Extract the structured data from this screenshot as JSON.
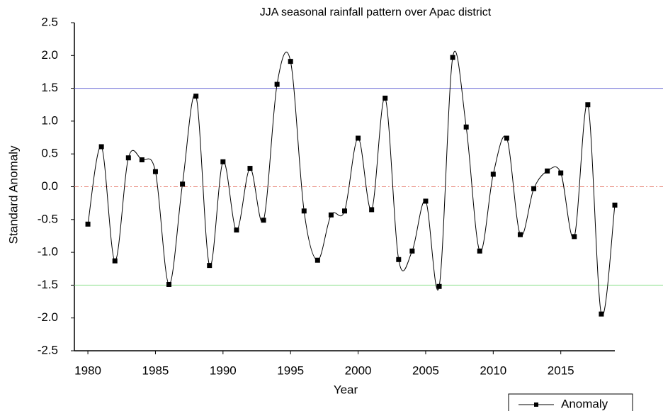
{
  "chart_data": {
    "type": "line",
    "title": "JJA seasonal rainfall pattern over Apac district",
    "x_label": "Year",
    "y_label": "Standard Anomaly",
    "x": [
      1980,
      1981,
      1982,
      1983,
      1984,
      1985,
      1986,
      1987,
      1988,
      1989,
      1990,
      1991,
      1992,
      1993,
      1994,
      1995,
      1996,
      1997,
      1998,
      1999,
      2000,
      2001,
      2002,
      2003,
      2004,
      2005,
      2006,
      2007,
      2008,
      2009,
      2010,
      2011,
      2012,
      2013,
      2014,
      2015,
      2016,
      2017,
      2018,
      2019
    ],
    "series": [
      {
        "name": "Anomaly",
        "color": "#000000",
        "values": [
          -0.57,
          0.61,
          -1.13,
          0.44,
          0.41,
          0.23,
          -1.49,
          0.04,
          1.38,
          -1.2,
          0.38,
          -0.66,
          0.28,
          -0.51,
          1.56,
          1.91,
          -0.37,
          -1.12,
          -0.43,
          -0.37,
          0.74,
          -0.35,
          1.35,
          -1.11,
          -0.98,
          -0.22,
          -1.52,
          1.97,
          0.91,
          -0.98,
          0.19,
          0.74,
          -0.73,
          -0.03,
          0.24,
          0.21,
          -0.76,
          1.25,
          -1.94,
          -0.28
        ]
      }
    ],
    "reference_lines": [
      {
        "value": 1.5,
        "color": "#6b6bd6",
        "style": "solid"
      },
      {
        "value": 0,
        "color": "#e8877a",
        "style": "dashdot"
      },
      {
        "value": -1.5,
        "color": "#8fe08f",
        "style": "solid"
      }
    ],
    "xlim": [
      1979,
      2019
    ],
    "xticks": [
      1980,
      1985,
      1990,
      1995,
      2000,
      2005,
      2010,
      2015
    ],
    "ylim": [
      -2.5,
      2.5
    ],
    "yticks": [
      -2.5,
      {
        "value": -2,
        "label": "-2.0"
      },
      -1.5,
      {
        "value": -1,
        "label": "-1.0"
      },
      -0.5,
      {
        "value": 0,
        "label": "0.0"
      },
      0.5,
      {
        "value": 1,
        "label": "1.0"
      },
      1.5,
      {
        "value": 2,
        "label": "2.0"
      },
      2.5
    ],
    "legend": "bottom-right"
  }
}
